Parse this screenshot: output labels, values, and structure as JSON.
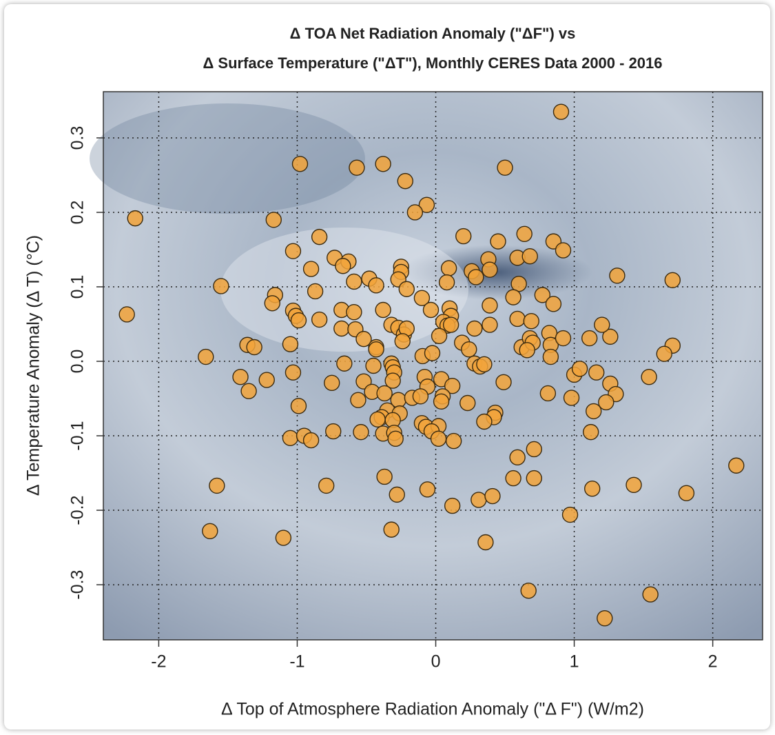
{
  "chart_data": {
    "type": "scatter",
    "title": "Δ TOA Net Radiation Anomaly (\"ΔF\") vs",
    "subtitle": "Δ Surface Temperature (\"ΔT\"), Monthly CERES Data 2000 - 2016",
    "x_label": "Δ Top of Atmosphere Radiation Anomaly (\"Δ F\") (W/m2)",
    "y_label": "Δ Temperature Anomaly  (Δ T) (°C)",
    "color": "#f2a33a",
    "grid": true,
    "xlim": [
      -2.4,
      2.36
    ],
    "ylim": [
      -0.374,
      0.362
    ],
    "xticks": [
      -2,
      -1,
      0,
      1,
      2
    ],
    "yticks": [
      -0.3,
      -0.2,
      -0.1,
      {
        "value": 0,
        "label": "0.0"
      },
      0.1,
      0.2,
      0.3
    ],
    "x": [
      0.905,
      -0.98,
      -0.57,
      -0.38,
      -0.22,
      0.5,
      -0.065,
      -0.15,
      -2.17,
      -1.17,
      -0.84,
      0.2,
      0.64,
      0.45,
      0.85,
      0.92,
      -1.03,
      -0.73,
      -0.63,
      -0.67,
      -0.9,
      -0.25,
      -0.25,
      0.095,
      0.26,
      0.29,
      0.38,
      0.39,
      0.59,
      0.68,
      -0.27,
      -0.48,
      -0.43,
      -0.59,
      -0.21,
      0.08,
      0.6,
      1.31,
      1.71,
      -1.55,
      -1.16,
      -1.18,
      -0.87,
      -0.1,
      0.56,
      0.77,
      0.85,
      -0.38,
      -0.68,
      -0.59,
      -1.03,
      -1.01,
      -0.99,
      -0.84,
      -0.035,
      0.1,
      0.11,
      0.39,
      0.055,
      0.085,
      0.11,
      0.59,
      0.69,
      0.39,
      0.28,
      -0.68,
      -0.58,
      -0.32,
      -0.27,
      -0.23,
      -0.21,
      -0.24,
      0.025,
      -0.52,
      -0.43,
      -0.43,
      -1.05,
      -1.36,
      -1.31,
      -1.66,
      -2.23,
      0.19,
      0.24,
      -0.095,
      -0.025,
      0.62,
      0.68,
      0.7,
      0.66,
      0.82,
      0.83,
      0.83,
      0.92,
      1.11,
      1.26,
      1.2,
      1.71,
      1.65,
      -0.32,
      -0.31,
      -0.3,
      -0.31,
      -0.66,
      -0.45,
      0.28,
      0.32,
      0.35,
      -1.03,
      1.16,
      1.0,
      1.04,
      1.54,
      1.26,
      1.3,
      -1.41,
      -1.22,
      -1.35,
      -0.75,
      -0.52,
      -0.08,
      0.04,
      -0.06,
      0.12,
      0.49,
      -0.46,
      -0.37,
      -0.56,
      -0.27,
      -0.17,
      -0.11,
      0.05,
      0.04,
      0.23,
      0.81,
      0.98,
      1.23,
      1.14,
      -0.99,
      -0.35,
      -0.26,
      -0.39,
      -0.42,
      -0.31,
      0.43,
      0.42,
      0.35,
      -0.1,
      -0.07,
      0.02,
      -0.03,
      -0.54,
      -0.74,
      -0.38,
      -0.3,
      -0.29,
      0.02,
      0.13,
      -1.05,
      -0.95,
      -0.9,
      1.12,
      0.71,
      0.59,
      2.17,
      -0.37,
      0.56,
      0.71,
      -1.58,
      -0.79,
      -0.06,
      1.13,
      1.43,
      1.81,
      -0.28,
      0.31,
      0.41,
      0.12,
      0.97,
      -1.63,
      -0.32,
      -1.1,
      0.36,
      0.67,
      1.55,
      1.22
    ],
    "values": [
      0.335,
      0.265,
      0.26,
      0.265,
      0.242,
      0.26,
      0.21,
      0.2,
      0.192,
      0.19,
      0.167,
      0.168,
      0.171,
      0.161,
      0.161,
      0.149,
      0.148,
      0.139,
      0.134,
      0.128,
      0.124,
      0.127,
      0.12,
      0.125,
      0.121,
      0.113,
      0.137,
      0.123,
      0.139,
      0.141,
      0.11,
      0.111,
      0.102,
      0.107,
      0.097,
      0.106,
      0.104,
      0.115,
      0.109,
      0.101,
      0.089,
      0.078,
      0.094,
      0.085,
      0.086,
      0.089,
      0.077,
      0.069,
      0.069,
      0.066,
      0.068,
      0.061,
      0.055,
      0.056,
      0.069,
      0.071,
      0.061,
      0.075,
      0.053,
      0.048,
      0.049,
      0.057,
      0.054,
      0.049,
      0.044,
      0.044,
      0.043,
      0.049,
      0.045,
      0.036,
      0.044,
      0.027,
      0.034,
      0.03,
      0.019,
      0.016,
      0.023,
      0.022,
      0.019,
      0.006,
      0.063,
      0.025,
      0.016,
      0.007,
      0.011,
      0.019,
      0.031,
      0.025,
      0.015,
      0.038,
      0.022,
      0.006,
      0.031,
      0.031,
      0.033,
      0.049,
      0.021,
      0.01,
      -0.003,
      -0.008,
      -0.015,
      -0.026,
      -0.003,
      -0.006,
      -0.003,
      -0.007,
      -0.004,
      -0.015,
      -0.015,
      -0.018,
      -0.01,
      -0.021,
      -0.03,
      -0.044,
      -0.021,
      -0.025,
      -0.04,
      -0.029,
      -0.027,
      -0.021,
      -0.024,
      -0.034,
      -0.033,
      -0.028,
      -0.041,
      -0.043,
      -0.052,
      -0.052,
      -0.049,
      -0.047,
      -0.047,
      -0.054,
      -0.056,
      -0.043,
      -0.049,
      -0.055,
      -0.067,
      -0.06,
      -0.066,
      -0.07,
      -0.075,
      -0.078,
      -0.079,
      -0.069,
      -0.075,
      -0.081,
      -0.083,
      -0.088,
      -0.087,
      -0.094,
      -0.095,
      -0.094,
      -0.097,
      -0.096,
      -0.104,
      -0.104,
      -0.107,
      -0.103,
      -0.1,
      -0.106,
      -0.095,
      -0.118,
      -0.129,
      -0.14,
      -0.155,
      -0.157,
      -0.157,
      -0.167,
      -0.167,
      -0.172,
      -0.171,
      -0.166,
      -0.177,
      -0.179,
      -0.186,
      -0.181,
      -0.194,
      -0.206,
      -0.228,
      -0.226,
      -0.237,
      -0.243,
      -0.308,
      -0.313,
      -0.345
    ]
  }
}
